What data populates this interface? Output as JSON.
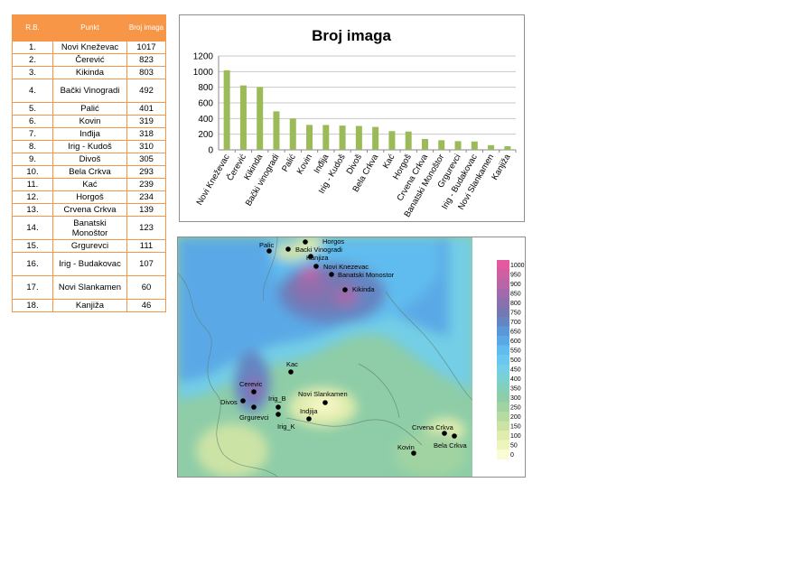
{
  "table": {
    "headers": [
      "R.B.",
      "Punkt",
      "Broj imaga"
    ],
    "rows": [
      [
        "1.",
        "Novi Kneževac",
        "1017"
      ],
      [
        "2.",
        "Čerević",
        "823"
      ],
      [
        "3.",
        "Kikinda",
        "803"
      ],
      [
        "4.",
        "Bački Vinogradi",
        "492"
      ],
      [
        "5.",
        "Palić",
        "401"
      ],
      [
        "6.",
        "Kovin",
        "319"
      ],
      [
        "7.",
        "Inđija",
        "318"
      ],
      [
        "8.",
        "Irig - Kudoš",
        "310"
      ],
      [
        "9.",
        "Divoš",
        "305"
      ],
      [
        "10.",
        "Bela Crkva",
        "293"
      ],
      [
        "11.",
        "Kać",
        "239"
      ],
      [
        "12.",
        "Horgoš",
        "234"
      ],
      [
        "13.",
        "Crvena Crkva",
        "139"
      ],
      [
        "14.",
        "Banatski Monoštor",
        "123"
      ],
      [
        "15.",
        "Grgurevci",
        "111"
      ],
      [
        "16.",
        "Irig - Budakovac",
        "107"
      ],
      [
        "17.",
        "Novi Slankamen",
        "60"
      ],
      [
        "18.",
        "Kanjiža",
        "46"
      ]
    ]
  },
  "chart_data": {
    "type": "bar",
    "title": "Broj imaga",
    "categories": [
      "Novi Kneževac",
      "Čerević",
      "Kikinda",
      "Bački vinogradi",
      "Palić",
      "Kovin",
      "Inđija",
      "Irig - Kudoš",
      "Divoš",
      "Bela Crkva",
      "Kać",
      "Horgoš",
      "Crvena Crkva",
      "Banatski Monoštor",
      "Grgurevci",
      "Irig - Budakovac",
      "Novi Slankamen",
      "Kanjiža"
    ],
    "values": [
      1017,
      823,
      803,
      492,
      401,
      319,
      318,
      310,
      305,
      293,
      239,
      234,
      139,
      123,
      111,
      107,
      60,
      46
    ],
    "ylim": [
      0,
      1200
    ],
    "yticks": [
      0,
      200,
      400,
      600,
      800,
      1000,
      1200
    ],
    "grid": true,
    "legend": "none",
    "bar_color": "#9bbb59"
  },
  "map": {
    "points": [
      {
        "label": "Palic"
      },
      {
        "label": "Horgos"
      },
      {
        "label": "Backi Vinogradi"
      },
      {
        "label": "Kanjiza"
      },
      {
        "label": "Novi Knezevac"
      },
      {
        "label": "Banatski Monostor"
      },
      {
        "label": "Kikinda"
      },
      {
        "label": "Kac"
      },
      {
        "label": "Cerevic"
      },
      {
        "label": "Divos"
      },
      {
        "label": "Irig_B"
      },
      {
        "label": "Novi Slankamen"
      },
      {
        "label": "Grgurevci"
      },
      {
        "label": "Indjija"
      },
      {
        "label": "Irig_K"
      },
      {
        "label": "Crvena Crkva"
      },
      {
        "label": "Bela Crkva"
      },
      {
        "label": "Kovin"
      }
    ],
    "legend": {
      "levels": [
        1000,
        950,
        900,
        850,
        800,
        750,
        700,
        650,
        600,
        550,
        500,
        450,
        400,
        350,
        300,
        250,
        200,
        150,
        100,
        50,
        0
      ],
      "colors": [
        "#e35aa0",
        "#cf5fa3",
        "#b965a7",
        "#a26aab",
        "#8c70ae",
        "#7678b4",
        "#6585c2",
        "#5b97d6",
        "#5aa9e6",
        "#60bbee",
        "#6ac7ef",
        "#73cee6",
        "#7bd0d2",
        "#83cfba",
        "#8ecda7",
        "#a1d3a2",
        "#b6dba2",
        "#cce3a6",
        "#e0ecae",
        "#eff3bc",
        "#fbfbd6"
      ]
    }
  }
}
